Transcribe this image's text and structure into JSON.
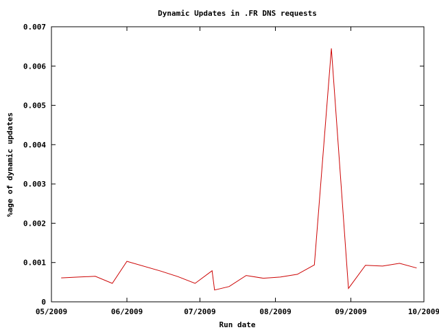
{
  "chart_data": {
    "type": "line",
    "title": "Dynamic Updates in .FR DNS requests",
    "xlabel": "Run date",
    "ylabel": "%age of dynamic updates",
    "x_axis_type": "date",
    "xlim": [
      "2009-05-01",
      "2009-10-01"
    ],
    "ylim": [
      0,
      0.007
    ],
    "x_ticks": [
      "2009-05-01",
      "2009-06-01",
      "2009-07-01",
      "2009-08-01",
      "2009-09-01",
      "2009-10-01"
    ],
    "x_tick_labels": [
      "05/2009",
      "06/2009",
      "07/2009",
      "08/2009",
      "09/2009",
      "10/2009"
    ],
    "y_ticks": [
      0,
      0.001,
      0.002,
      0.003,
      0.004,
      0.005,
      0.006,
      0.007
    ],
    "y_tick_labels": [
      "0",
      "0.001",
      "0.002",
      "0.003",
      "0.004",
      "0.005",
      "0.006",
      "0.007"
    ],
    "grid": false,
    "legend": "none",
    "series": [
      {
        "color": "#cc0000",
        "x": [
          "2009-05-05",
          "2009-05-12",
          "2009-05-19",
          "2009-05-26",
          "2009-06-01",
          "2009-06-15",
          "2009-06-22",
          "2009-06-29",
          "2009-07-06",
          "2009-07-07",
          "2009-07-13",
          "2009-07-20",
          "2009-07-27",
          "2009-08-03",
          "2009-08-10",
          "2009-08-17",
          "2009-08-24",
          "2009-08-31",
          "2009-09-07",
          "2009-09-14",
          "2009-09-21",
          "2009-09-28"
        ],
        "y": [
          0.00061,
          0.00063,
          0.00065,
          0.00047,
          0.00103,
          0.00078,
          0.00064,
          0.00047,
          0.00079,
          0.0003,
          0.00039,
          0.00067,
          0.0006,
          0.00063,
          0.0007,
          0.00094,
          0.00645,
          0.00034,
          0.00093,
          0.00091,
          0.00098,
          0.00086
        ]
      }
    ]
  }
}
